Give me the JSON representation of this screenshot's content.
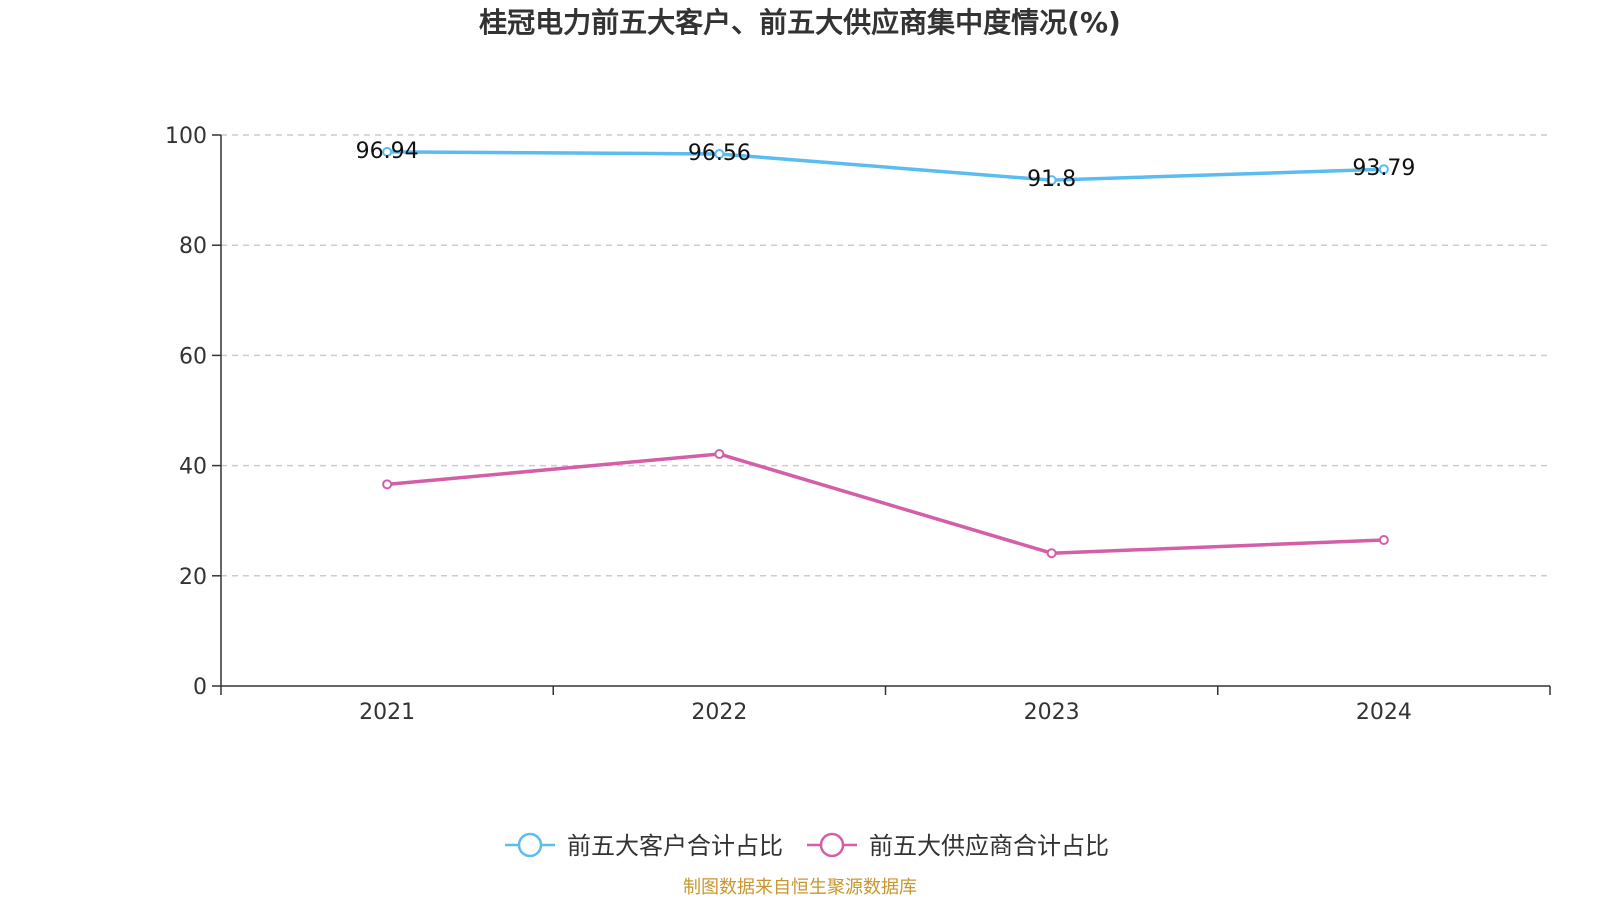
{
  "chart_data": {
    "type": "line",
    "title": "桂冠电力前五大客户、前五大供应商集中度情况(%)",
    "categories": [
      "2021",
      "2022",
      "2023",
      "2024"
    ],
    "ylim": [
      0,
      100
    ],
    "yticks": [
      0,
      20,
      40,
      60,
      80,
      100
    ],
    "grid": true,
    "legend_position": "bottom-center",
    "series": [
      {
        "name": "前五大客户合计占比",
        "values": [
          96.94,
          96.56,
          91.8,
          93.79
        ],
        "labels": [
          "96.94",
          "96.56",
          "91.8",
          "93.79"
        ],
        "color": "#5bbcf0"
      },
      {
        "name": "前五大供应商合计占比",
        "values": [
          36.6,
          42.1,
          24.1,
          26.5
        ],
        "labels": [
          "",
          "",
          "",
          ""
        ],
        "color": "#d35fa8"
      }
    ],
    "source": "制图数据来自恒生聚源数据库",
    "source_color": "#c8962e",
    "axis_color": "#333333",
    "grid_color": "#c8ccd6"
  }
}
